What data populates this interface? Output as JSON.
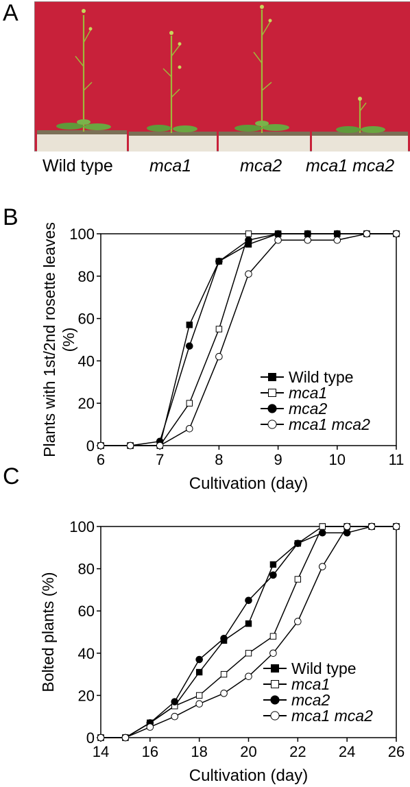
{
  "panel_a": {
    "letter": "A",
    "labels": [
      {
        "text": "Wild type",
        "italic": false
      },
      {
        "text": "mca1",
        "italic": true
      },
      {
        "text": "mca2",
        "italic": true
      },
      {
        "text": "mca1 mca2",
        "italic": true
      }
    ]
  },
  "panel_b_letter": "B",
  "panel_c_letter": "C",
  "chart_data": [
    {
      "type": "line",
      "xlabel": "Cultivation (day)",
      "ylabel": "Plants with 1st/2nd rosette leaves (%)",
      "ylabel_lines": [
        "Plants with 1st/2nd rosette leaves",
        "(%)"
      ],
      "xlim": [
        6,
        11
      ],
      "ylim": [
        0,
        100
      ],
      "xticks": [
        6,
        7,
        8,
        9,
        10,
        11
      ],
      "yticks": [
        0,
        20,
        40,
        60,
        80,
        100
      ],
      "grid": false,
      "legend_position": "bottom-right",
      "series": [
        {
          "name": "Wild type",
          "marker": "filled-square",
          "x": [
            6,
            6.5,
            7,
            7.5,
            8,
            8.5,
            9,
            9.5,
            10,
            10.5,
            11
          ],
          "y": [
            0,
            0,
            0,
            57,
            87,
            95,
            100,
            100,
            100,
            100,
            100
          ]
        },
        {
          "name": "mca1",
          "marker": "open-square",
          "x": [
            6,
            6.5,
            7,
            7.5,
            8,
            8.5,
            9,
            9.5,
            10,
            10.5,
            11
          ],
          "y": [
            0,
            0,
            0,
            20,
            55,
            100,
            100,
            100,
            100,
            100,
            100
          ]
        },
        {
          "name": "mca2",
          "marker": "filled-circle",
          "x": [
            6,
            6.5,
            7,
            7.5,
            8,
            8.5,
            9,
            9.5,
            10,
            10.5,
            11
          ],
          "y": [
            0,
            0,
            2,
            47,
            87,
            97,
            100,
            100,
            100,
            100,
            100
          ]
        },
        {
          "name": "mca1 mca2",
          "marker": "open-circle",
          "x": [
            6,
            6.5,
            7,
            7.5,
            8,
            8.5,
            9,
            9.5,
            10,
            10.5,
            11
          ],
          "y": [
            0,
            0,
            0,
            8,
            42,
            81,
            97,
            97,
            97,
            100,
            100
          ]
        }
      ]
    },
    {
      "type": "line",
      "xlabel": "Cultivation (day)",
      "ylabel": "Bolted plants (%)",
      "ylabel_lines": [
        "Bolted plants (%)"
      ],
      "xlim": [
        14,
        26
      ],
      "ylim": [
        0,
        100
      ],
      "xticks": [
        14,
        16,
        18,
        20,
        22,
        24,
        26
      ],
      "yticks": [
        0,
        20,
        40,
        60,
        80,
        100
      ],
      "grid": false,
      "legend_position": "bottom-right",
      "series": [
        {
          "name": "Wild type",
          "marker": "filled-square",
          "x": [
            14,
            15,
            16,
            17,
            18,
            19,
            20,
            21,
            22,
            23,
            24,
            25,
            26
          ],
          "y": [
            0,
            0,
            7,
            15,
            31,
            46,
            54,
            82,
            92,
            100,
            100,
            100,
            100
          ]
        },
        {
          "name": "mca1",
          "marker": "open-square",
          "x": [
            14,
            15,
            16,
            17,
            18,
            19,
            20,
            21,
            22,
            23,
            24,
            25,
            26
          ],
          "y": [
            0,
            0,
            7,
            15,
            20,
            30,
            40,
            48,
            75,
            100,
            100,
            100,
            100
          ]
        },
        {
          "name": "mca2",
          "marker": "filled-circle",
          "x": [
            14,
            15,
            16,
            17,
            18,
            19,
            20,
            21,
            22,
            23,
            24,
            25,
            26
          ],
          "y": [
            0,
            0,
            7,
            17,
            37,
            47,
            65,
            77,
            92,
            97,
            97,
            100,
            100
          ]
        },
        {
          "name": "mca1 mca2",
          "marker": "open-circle",
          "x": [
            14,
            15,
            16,
            17,
            18,
            19,
            20,
            21,
            22,
            23,
            24,
            25,
            26
          ],
          "y": [
            0,
            0,
            5,
            10,
            16,
            21,
            29,
            40,
            55,
            81,
            100,
            100,
            100
          ]
        }
      ]
    }
  ]
}
